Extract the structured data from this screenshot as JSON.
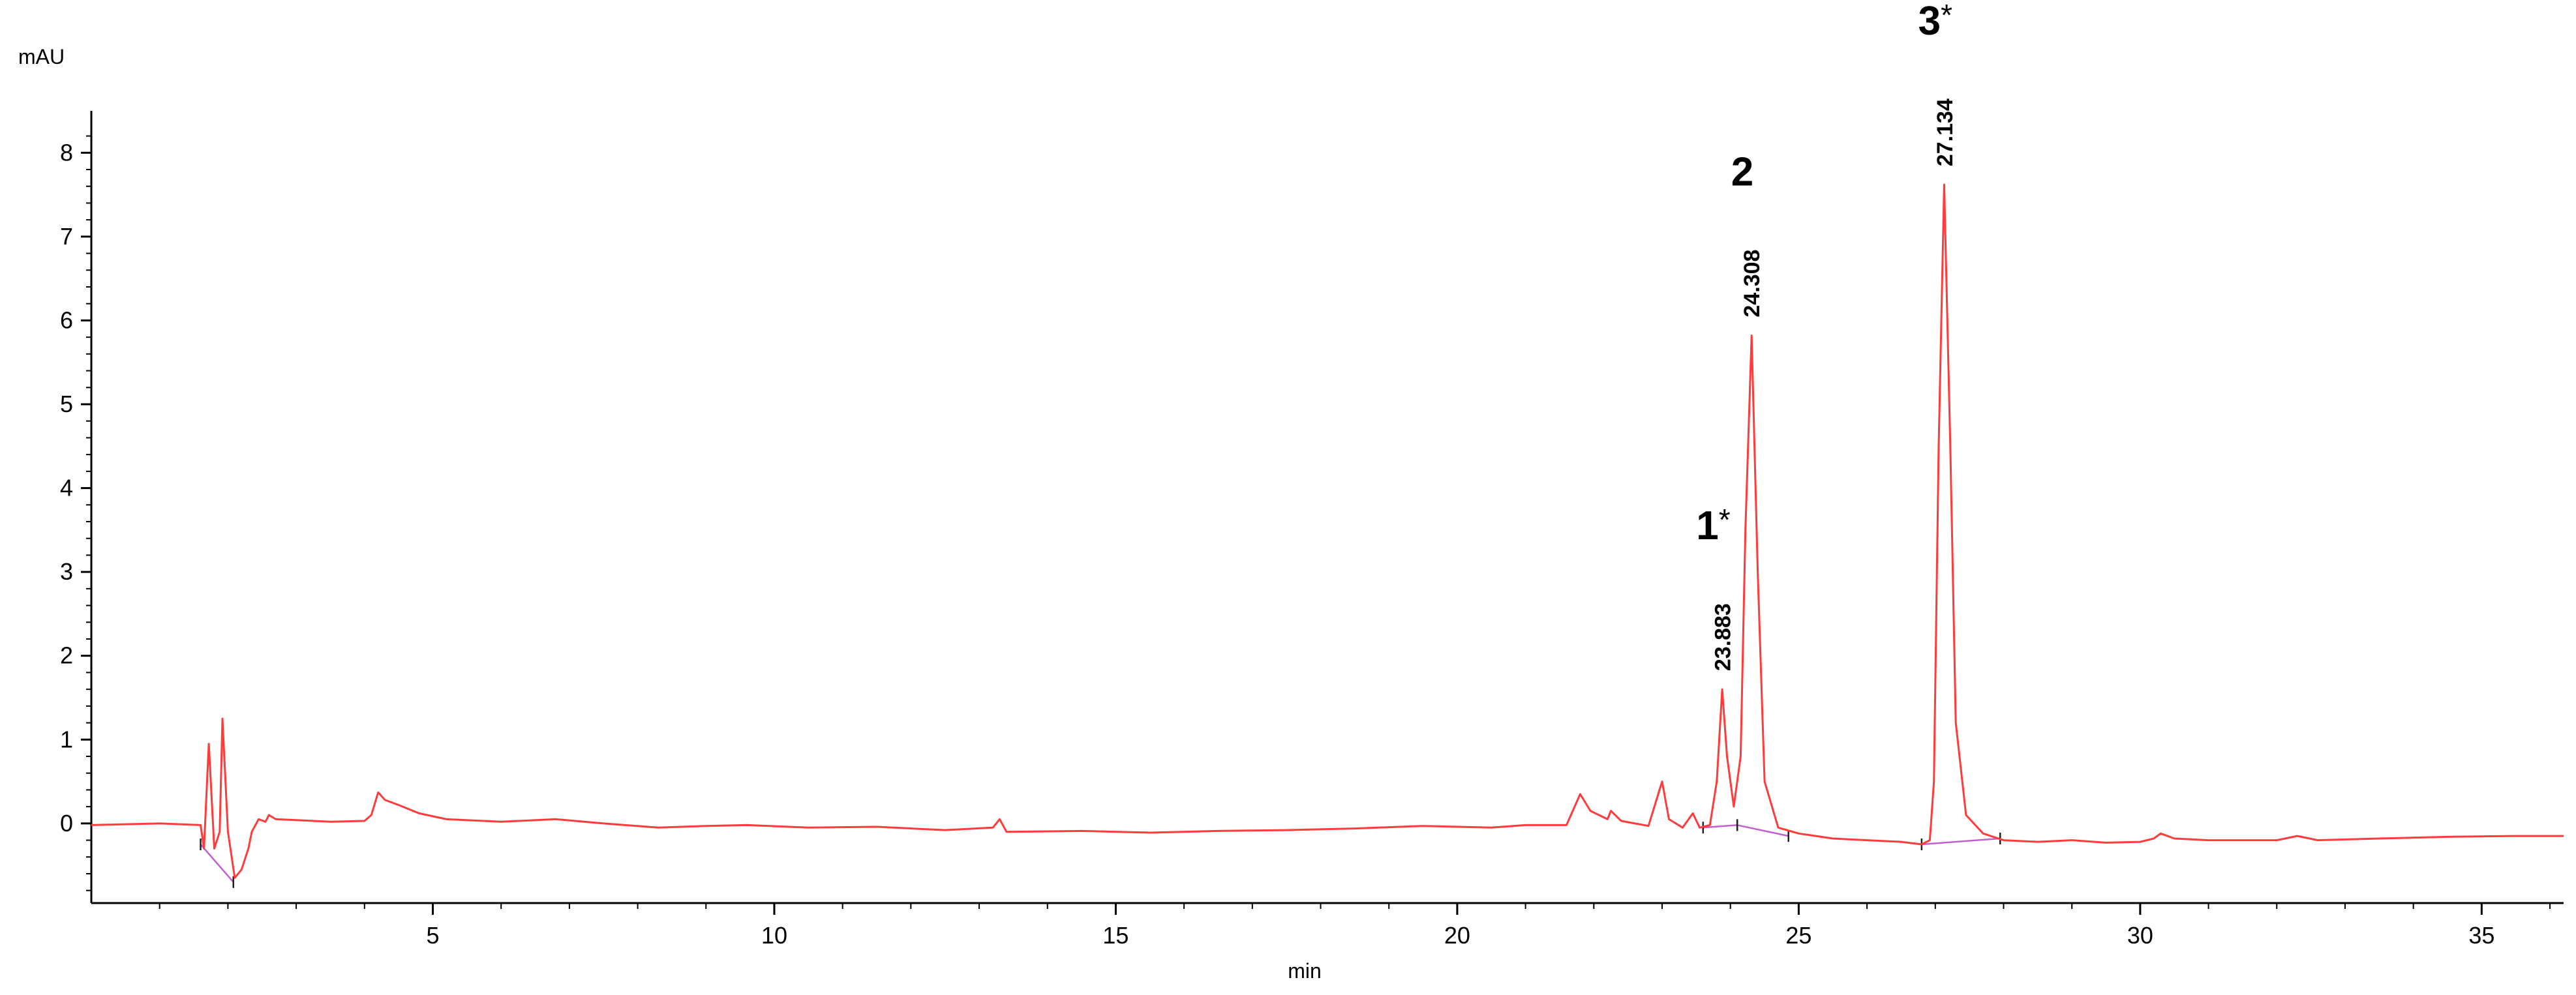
{
  "chart_data": {
    "type": "line",
    "ylabel": "mAU",
    "xlabel": "min",
    "xlim": [
      0,
      36.2
    ],
    "ylim": [
      -0.95,
      8.5
    ],
    "x_ticks": [
      5,
      10,
      15,
      20,
      25,
      30,
      35
    ],
    "x_tick_labels": [
      "5",
      "10",
      "15",
      "20",
      "25",
      "30",
      "35"
    ],
    "y_ticks": [
      0,
      1,
      2,
      3,
      4,
      5,
      6,
      7,
      8
    ],
    "y_tick_labels": [
      "0",
      "1",
      "2",
      "3",
      "4",
      "5",
      "6",
      "7",
      "8"
    ],
    "grid": false,
    "colors": {
      "trace": "#ff3b3b",
      "baseline": "#c060d0",
      "axis": "#000000"
    },
    "series": [
      {
        "values": [
          [
            0.0,
            -0.02
          ],
          [
            1.0,
            0.0
          ],
          [
            1.6,
            -0.02
          ],
          [
            1.65,
            -0.3
          ],
          [
            1.72,
            0.95
          ],
          [
            1.8,
            -0.3
          ],
          [
            1.88,
            -0.1
          ],
          [
            1.92,
            1.25
          ],
          [
            2.0,
            -0.1
          ],
          [
            2.1,
            -0.65
          ],
          [
            2.2,
            -0.55
          ],
          [
            2.3,
            -0.3
          ],
          [
            2.35,
            -0.1
          ],
          [
            2.45,
            0.05
          ],
          [
            2.55,
            0.02
          ],
          [
            2.6,
            0.1
          ],
          [
            2.7,
            0.05
          ],
          [
            3.0,
            0.04
          ],
          [
            3.5,
            0.02
          ],
          [
            4.0,
            0.03
          ],
          [
            4.1,
            0.1
          ],
          [
            4.2,
            0.37
          ],
          [
            4.3,
            0.28
          ],
          [
            4.5,
            0.22
          ],
          [
            4.8,
            0.12
          ],
          [
            5.2,
            0.05
          ],
          [
            6.0,
            0.02
          ],
          [
            6.8,
            0.05
          ],
          [
            7.5,
            0.0
          ],
          [
            8.3,
            -0.05
          ],
          [
            9.0,
            -0.03
          ],
          [
            9.6,
            -0.02
          ],
          [
            10.5,
            -0.05
          ],
          [
            11.5,
            -0.04
          ],
          [
            12.5,
            -0.08
          ],
          [
            13.2,
            -0.05
          ],
          [
            13.3,
            0.05
          ],
          [
            13.4,
            -0.1
          ],
          [
            14.5,
            -0.09
          ],
          [
            15.5,
            -0.11
          ],
          [
            16.5,
            -0.09
          ],
          [
            17.5,
            -0.08
          ],
          [
            18.5,
            -0.06
          ],
          [
            19.5,
            -0.03
          ],
          [
            20.5,
            -0.05
          ],
          [
            21.0,
            -0.02
          ],
          [
            21.6,
            -0.02
          ],
          [
            21.8,
            0.35
          ],
          [
            21.95,
            0.15
          ],
          [
            22.2,
            0.05
          ],
          [
            22.25,
            0.15
          ],
          [
            22.4,
            0.03
          ],
          [
            22.6,
            0.0
          ],
          [
            22.8,
            -0.03
          ],
          [
            23.0,
            0.5
          ],
          [
            23.1,
            0.05
          ],
          [
            23.3,
            -0.05
          ],
          [
            23.45,
            0.12
          ],
          [
            23.55,
            -0.05
          ],
          [
            23.7,
            -0.02
          ],
          [
            23.8,
            0.5
          ],
          [
            23.88,
            1.6
          ],
          [
            23.95,
            0.8
          ],
          [
            24.05,
            0.2
          ],
          [
            24.15,
            0.8
          ],
          [
            24.22,
            3.5
          ],
          [
            24.31,
            5.82
          ],
          [
            24.4,
            3.0
          ],
          [
            24.5,
            0.5
          ],
          [
            24.7,
            -0.05
          ],
          [
            25.0,
            -0.12
          ],
          [
            25.5,
            -0.18
          ],
          [
            26.0,
            -0.2
          ],
          [
            26.5,
            -0.22
          ],
          [
            26.8,
            -0.25
          ],
          [
            26.92,
            -0.2
          ],
          [
            26.98,
            0.5
          ],
          [
            27.05,
            4.5
          ],
          [
            27.13,
            7.62
          ],
          [
            27.22,
            4.5
          ],
          [
            27.3,
            1.2
          ],
          [
            27.45,
            0.1
          ],
          [
            27.7,
            -0.12
          ],
          [
            28.0,
            -0.2
          ],
          [
            28.5,
            -0.22
          ],
          [
            29.0,
            -0.2
          ],
          [
            29.5,
            -0.23
          ],
          [
            30.0,
            -0.22
          ],
          [
            30.2,
            -0.18
          ],
          [
            30.3,
            -0.12
          ],
          [
            30.5,
            -0.18
          ],
          [
            31.0,
            -0.2
          ],
          [
            32.0,
            -0.2
          ],
          [
            32.3,
            -0.15
          ],
          [
            32.6,
            -0.2
          ],
          [
            33.5,
            -0.18
          ],
          [
            34.5,
            -0.16
          ],
          [
            35.5,
            -0.15
          ],
          [
            36.2,
            -0.15
          ]
        ]
      }
    ],
    "baseline_segments": [
      [
        [
          1.6,
          -0.25
        ],
        [
          2.08,
          -0.7
        ]
      ],
      [
        [
          23.6,
          -0.05
        ],
        [
          24.1,
          -0.02
        ]
      ],
      [
        [
          24.1,
          -0.02
        ],
        [
          24.85,
          -0.15
        ]
      ],
      [
        [
          26.8,
          -0.25
        ],
        [
          27.95,
          -0.18
        ]
      ]
    ],
    "peaks": [
      {
        "time": 23.883,
        "time_label": "23.883",
        "id": "1",
        "star": "*",
        "height": 1.6
      },
      {
        "time": 24.308,
        "time_label": "24.308",
        "id": "2",
        "star": "",
        "height": 5.82
      },
      {
        "time": 27.134,
        "time_label": "27.134",
        "id": "3",
        "star": "*",
        "height": 7.62
      }
    ]
  }
}
